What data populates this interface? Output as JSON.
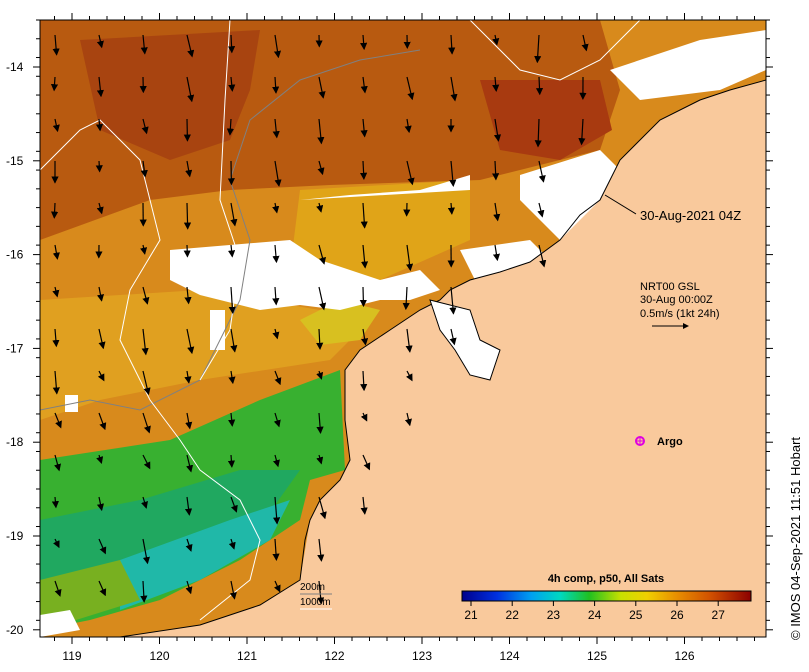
{
  "map": {
    "lat_ticks": [
      "-14",
      "-15",
      "-16",
      "-17",
      "-18",
      "-19",
      "-20"
    ],
    "lon_ticks": [
      "119",
      "120",
      "121",
      "122",
      "123",
      "124",
      "125",
      "126"
    ],
    "timestamp_label": "30-Aug-2021 04Z",
    "current_source": "NRT00 GSL",
    "current_time": "30-Aug 00:00Z",
    "current_scale": "0.5m/s (1kt 24h)",
    "argo_label": "Argo",
    "contour_200": "200m",
    "contour_1000": "1000m",
    "colorbar_title": "4h comp, p50, All Sats",
    "colorbar_ticks": [
      "21",
      "22",
      "23",
      "24",
      "25",
      "26",
      "27"
    ],
    "credit": "© IMOS 04-Sep-2021 11:51 Hobart"
  },
  "colors": {
    "land": "#f9c99c",
    "cloud_gap": "#ffffff",
    "argo_marker": "#e000e0",
    "scale_low": "#00008c",
    "scale_high": "#8c0000"
  }
}
